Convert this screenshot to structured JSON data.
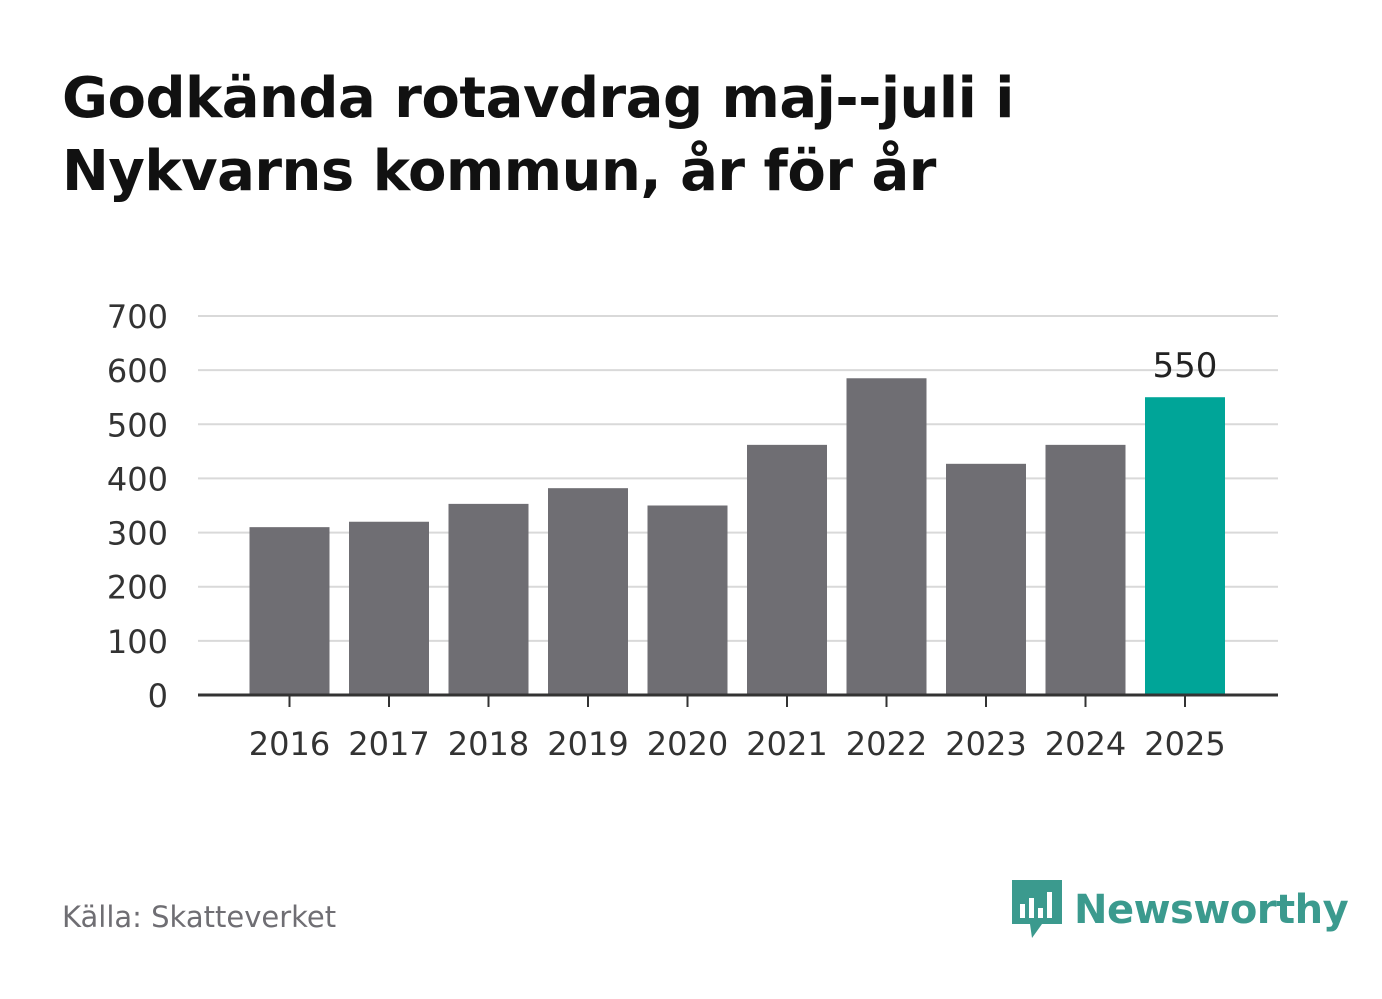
{
  "title_lines": [
    "Godkända rotavdrag maj--juli i",
    "Nykvarns kommun, år för år"
  ],
  "source": "Källa: Skatteverket",
  "brand": {
    "name": "Newsworthy",
    "icon": "newsworthy-logo-icon"
  },
  "colors": {
    "bar": "#6f6e73",
    "highlight": "#00a598",
    "grid": "#d9d9d9",
    "axis": "#333333",
    "text": "#333333",
    "brand": "#3b9a8e"
  },
  "chart_data": {
    "type": "bar",
    "title": "Godkända rotavdrag maj--juli i Nykvarns kommun, år för år",
    "xlabel": "",
    "ylabel": "",
    "categories": [
      "2016",
      "2017",
      "2018",
      "2019",
      "2020",
      "2021",
      "2022",
      "2023",
      "2024",
      "2025"
    ],
    "values": [
      310,
      320,
      353,
      382,
      350,
      462,
      585,
      427,
      462,
      550
    ],
    "ylim": [
      0,
      700
    ],
    "yticks": [
      "0",
      "100",
      "200",
      "300",
      "400",
      "500",
      "600",
      "700"
    ],
    "highlight_index": 9,
    "annotations": [
      {
        "category": "2025",
        "text": "550"
      }
    ],
    "grid": true,
    "legend": "none"
  }
}
